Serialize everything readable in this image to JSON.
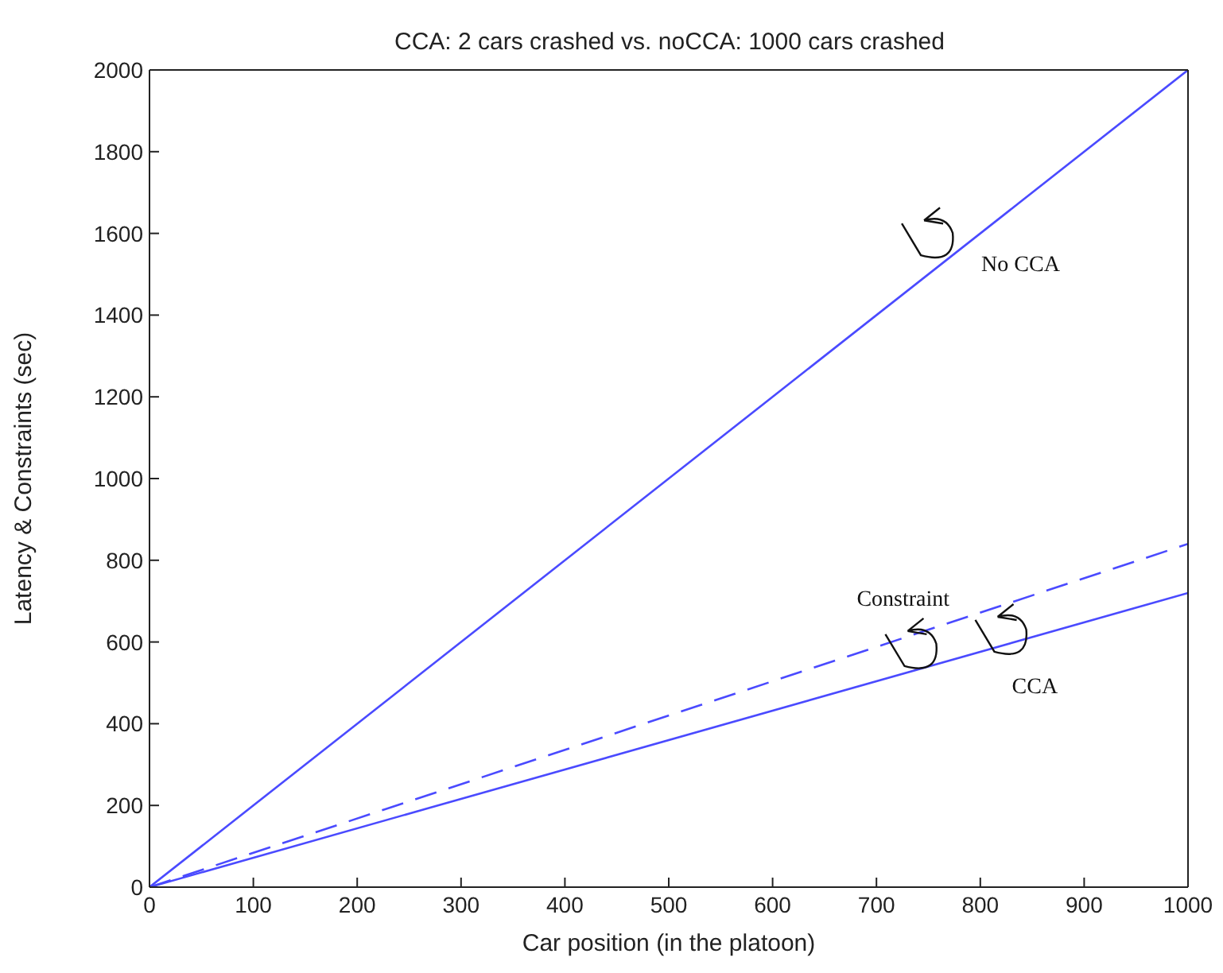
{
  "chart_data": {
    "type": "line",
    "title": "CCA: 2 cars crashed vs. noCCA: 1000 cars crashed",
    "xlabel": "Car position (in the platoon)",
    "ylabel": "Latency & Constraints (sec)",
    "x": [
      0,
      1000
    ],
    "series": [
      {
        "name": "No CCA",
        "color": "#4a4aff",
        "values": [
          0,
          2000
        ],
        "line_style": "solid"
      },
      {
        "name": "Constraint",
        "color": "#4a4aff",
        "values": [
          0,
          840
        ],
        "line_style": "dashed"
      },
      {
        "name": "CCA",
        "color": "#4a4aff",
        "values": [
          0,
          720
        ],
        "line_style": "solid"
      }
    ],
    "xlim": [
      0,
      1000
    ],
    "xticks": [
      0,
      100,
      200,
      300,
      400,
      500,
      600,
      700,
      800,
      900,
      1000
    ],
    "ylim": [
      0,
      2000
    ],
    "yticks": [
      0,
      200,
      400,
      600,
      800,
      1000,
      1200,
      1400,
      1600,
      1800,
      2000
    ],
    "grid": false,
    "legend": false,
    "marker": "none"
  }
}
